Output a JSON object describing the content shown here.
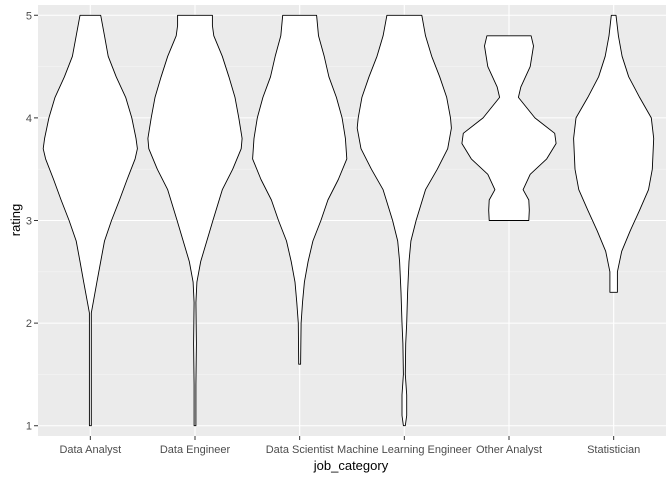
{
  "chart_data": {
    "type": "violin",
    "title": "",
    "xlabel": "job_category",
    "ylabel": "rating",
    "ylim": [
      0.9,
      5.1
    ],
    "y_ticks": [
      1,
      2,
      3,
      4,
      5
    ],
    "grid": true,
    "colors": {
      "panel": "#EBEBEB",
      "grid_major": "#FFFFFF",
      "grid_minor": "#F5F5F5",
      "violin_fill": "#FFFFFF",
      "violin_stroke": "#000000",
      "tick_text": "#4D4D4D",
      "axis_title": "#000000"
    },
    "categories": [
      "Data Analyst",
      "Data Engineer",
      "Data Scientist",
      "Machine Learning Engineer",
      "Other Analyst",
      "Statistician"
    ],
    "series": [
      {
        "category": "Data Analyst",
        "ymin": 1.0,
        "ymax": 5.0,
        "profile": [
          [
            5.0,
            0.22
          ],
          [
            4.8,
            0.3
          ],
          [
            4.6,
            0.38
          ],
          [
            4.4,
            0.55
          ],
          [
            4.2,
            0.75
          ],
          [
            4.0,
            0.88
          ],
          [
            3.8,
            0.97
          ],
          [
            3.7,
            1.0
          ],
          [
            3.6,
            0.95
          ],
          [
            3.4,
            0.78
          ],
          [
            3.2,
            0.62
          ],
          [
            3.0,
            0.45
          ],
          [
            2.8,
            0.3
          ],
          [
            2.6,
            0.22
          ],
          [
            2.4,
            0.14
          ],
          [
            2.2,
            0.06
          ],
          [
            2.1,
            0.02
          ],
          [
            1.8,
            0.02
          ],
          [
            1.4,
            0.02
          ],
          [
            1.0,
            0.02
          ]
        ]
      },
      {
        "category": "Data Engineer",
        "ymin": 1.0,
        "ymax": 5.0,
        "profile": [
          [
            5.0,
            0.37
          ],
          [
            4.9,
            0.37
          ],
          [
            4.8,
            0.4
          ],
          [
            4.6,
            0.58
          ],
          [
            4.4,
            0.72
          ],
          [
            4.2,
            0.85
          ],
          [
            4.0,
            0.93
          ],
          [
            3.8,
            1.0
          ],
          [
            3.7,
            0.98
          ],
          [
            3.5,
            0.8
          ],
          [
            3.3,
            0.58
          ],
          [
            3.0,
            0.38
          ],
          [
            2.8,
            0.25
          ],
          [
            2.6,
            0.12
          ],
          [
            2.4,
            0.04
          ],
          [
            2.2,
            0.02
          ],
          [
            1.8,
            0.03
          ],
          [
            1.4,
            0.02
          ],
          [
            1.0,
            0.02
          ]
        ]
      },
      {
        "category": "Data Scientist",
        "ymin": 1.6,
        "ymax": 5.0,
        "profile": [
          [
            5.0,
            0.36
          ],
          [
            4.8,
            0.4
          ],
          [
            4.6,
            0.52
          ],
          [
            4.4,
            0.62
          ],
          [
            4.2,
            0.78
          ],
          [
            4.0,
            0.9
          ],
          [
            3.8,
            0.97
          ],
          [
            3.6,
            1.0
          ],
          [
            3.4,
            0.82
          ],
          [
            3.2,
            0.6
          ],
          [
            3.0,
            0.45
          ],
          [
            2.8,
            0.28
          ],
          [
            2.6,
            0.18
          ],
          [
            2.4,
            0.1
          ],
          [
            2.2,
            0.06
          ],
          [
            2.0,
            0.03
          ],
          [
            1.6,
            0.02
          ]
        ]
      },
      {
        "category": "Machine Learning Engineer",
        "ymin": 1.0,
        "ymax": 5.0,
        "profile": [
          [
            5.0,
            0.37
          ],
          [
            4.8,
            0.45
          ],
          [
            4.6,
            0.58
          ],
          [
            4.4,
            0.75
          ],
          [
            4.2,
            0.9
          ],
          [
            4.0,
            0.98
          ],
          [
            3.9,
            1.0
          ],
          [
            3.7,
            0.92
          ],
          [
            3.5,
            0.7
          ],
          [
            3.3,
            0.45
          ],
          [
            3.0,
            0.25
          ],
          [
            2.8,
            0.14
          ],
          [
            2.6,
            0.1
          ],
          [
            2.3,
            0.07
          ],
          [
            2.0,
            0.05
          ],
          [
            1.8,
            0.03
          ],
          [
            1.5,
            0.02
          ],
          [
            1.3,
            0.05
          ],
          [
            1.1,
            0.05
          ],
          [
            1.0,
            0.02
          ]
        ]
      },
      {
        "category": "Other Analyst",
        "ymin": 3.0,
        "ymax": 4.8,
        "profile": [
          [
            4.8,
            0.47
          ],
          [
            4.7,
            0.52
          ],
          [
            4.5,
            0.45
          ],
          [
            4.3,
            0.25
          ],
          [
            4.2,
            0.2
          ],
          [
            4.0,
            0.55
          ],
          [
            3.85,
            0.97
          ],
          [
            3.75,
            1.0
          ],
          [
            3.6,
            0.8
          ],
          [
            3.45,
            0.45
          ],
          [
            3.3,
            0.3
          ],
          [
            3.2,
            0.42
          ],
          [
            3.1,
            0.43
          ],
          [
            3.0,
            0.42
          ]
        ]
      },
      {
        "category": "Statistician",
        "ymin": 2.3,
        "ymax": 5.0,
        "profile": [
          [
            5.0,
            0.05
          ],
          [
            4.8,
            0.1
          ],
          [
            4.6,
            0.18
          ],
          [
            4.4,
            0.32
          ],
          [
            4.2,
            0.55
          ],
          [
            4.0,
            0.8
          ],
          [
            3.8,
            0.85
          ],
          [
            3.5,
            0.82
          ],
          [
            3.3,
            0.74
          ],
          [
            3.1,
            0.55
          ],
          [
            2.9,
            0.35
          ],
          [
            2.7,
            0.17
          ],
          [
            2.5,
            0.08
          ],
          [
            2.3,
            0.08
          ]
        ]
      }
    ]
  }
}
